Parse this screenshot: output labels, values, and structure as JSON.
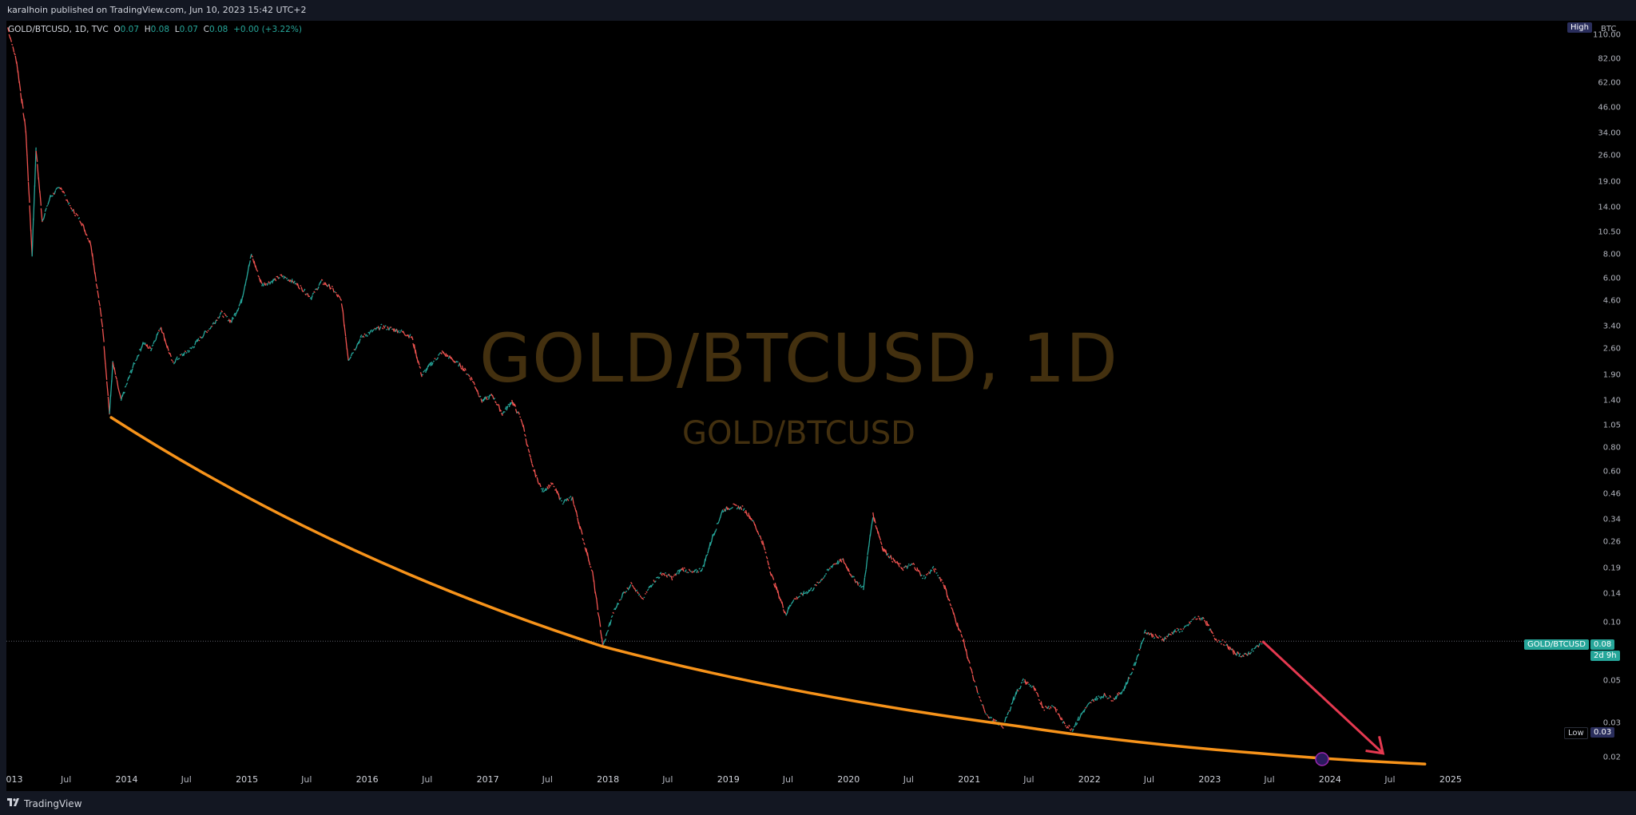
{
  "header": {
    "published": "karalhoin published on TradingView.com, Jun 10, 2023 15:42 UTC+2"
  },
  "legend": {
    "symbol": "GOLD/BTCUSD, 1D, TVC",
    "open_label": "O",
    "open": "0.07",
    "high_label": "H",
    "high": "0.08",
    "low_label": "L",
    "low": "0.07",
    "close_label": "C",
    "close": "0.08",
    "change": "+0.00 (+3.22%)"
  },
  "watermark": {
    "title": "GOLD/BTCUSD, 1D",
    "subtitle": "GOLD/BTCUSD"
  },
  "axis": {
    "currency": "BTC",
    "high_badge": "High",
    "low_label": "Low",
    "low_value": "0.03",
    "symbol_badge": "GOLD/BTCUSD",
    "last_price": "0.08",
    "countdown": "2d 9h"
  },
  "footer": {
    "brand": "TradingView"
  },
  "colors": {
    "up": "#26a69a",
    "down": "#ef5350",
    "trendline": "#f7931a",
    "arrow": "#e53950",
    "watermark": "#43300f"
  },
  "chart_data": {
    "type": "line",
    "title": "GOLD/BTCUSD, 1D",
    "scale": "log",
    "ylim": [
      0.018,
      130
    ],
    "xlim": [
      "2013-01-01",
      "2025-12-31"
    ],
    "y_ticks": [
      "110.00",
      "82.00",
      "62.00",
      "46.00",
      "34.00",
      "26.00",
      "19.00",
      "14.00",
      "10.50",
      "8.00",
      "6.00",
      "4.60",
      "3.40",
      "2.60",
      "1.90",
      "1.40",
      "1.05",
      "0.80",
      "0.60",
      "0.46",
      "0.34",
      "0.26",
      "0.19",
      "0.14",
      "0.10",
      "0.05",
      "0.03",
      "0.02"
    ],
    "x_ticks": [
      {
        "label": "013",
        "date": "2013-01-01",
        "year": true
      },
      {
        "label": "Jul",
        "date": "2013-07-01"
      },
      {
        "label": "2014",
        "date": "2014-01-01",
        "year": true
      },
      {
        "label": "Jul",
        "date": "2014-07-01"
      },
      {
        "label": "2015",
        "date": "2015-01-01",
        "year": true
      },
      {
        "label": "Jul",
        "date": "2015-07-01"
      },
      {
        "label": "2016",
        "date": "2016-01-01",
        "year": true
      },
      {
        "label": "Jul",
        "date": "2016-07-01"
      },
      {
        "label": "2017",
        "date": "2017-01-01",
        "year": true
      },
      {
        "label": "Jul",
        "date": "2017-07-01"
      },
      {
        "label": "2018",
        "date": "2018-01-01",
        "year": true
      },
      {
        "label": "Jul",
        "date": "2018-07-01"
      },
      {
        "label": "2019",
        "date": "2019-01-01",
        "year": true
      },
      {
        "label": "Jul",
        "date": "2019-07-01"
      },
      {
        "label": "2020",
        "date": "2020-01-01",
        "year": true
      },
      {
        "label": "Jul",
        "date": "2020-07-01"
      },
      {
        "label": "2021",
        "date": "2021-01-01",
        "year": true
      },
      {
        "label": "Jul",
        "date": "2021-07-01"
      },
      {
        "label": "2022",
        "date": "2022-01-01",
        "year": true
      },
      {
        "label": "Jul",
        "date": "2022-07-01"
      },
      {
        "label": "2023",
        "date": "2023-01-01",
        "year": true
      },
      {
        "label": "Jul",
        "date": "2023-07-01"
      },
      {
        "label": "2024",
        "date": "2024-01-01",
        "year": true
      },
      {
        "label": "Jul",
        "date": "2024-07-01"
      },
      {
        "label": "2025",
        "date": "2025-01-01",
        "year": true
      }
    ],
    "series": [
      {
        "points": [
          [
            "2013-01-05",
            120
          ],
          [
            "2013-02-01",
            80
          ],
          [
            "2013-03-01",
            35
          ],
          [
            "2013-03-20",
            8
          ],
          [
            "2013-04-01",
            28
          ],
          [
            "2013-04-20",
            12
          ],
          [
            "2013-05-15",
            16
          ],
          [
            "2013-06-15",
            18
          ],
          [
            "2013-07-15",
            14
          ],
          [
            "2013-08-15",
            12
          ],
          [
            "2013-09-15",
            9
          ],
          [
            "2013-10-20",
            3.4
          ],
          [
            "2013-11-10",
            1.2
          ],
          [
            "2013-11-20",
            2.2
          ],
          [
            "2013-12-15",
            1.4
          ],
          [
            "2014-01-15",
            2.0
          ],
          [
            "2014-02-20",
            2.8
          ],
          [
            "2014-03-15",
            2.6
          ],
          [
            "2014-04-15",
            3.4
          ],
          [
            "2014-05-20",
            2.2
          ],
          [
            "2014-06-15",
            2.4
          ],
          [
            "2014-07-15",
            2.6
          ],
          [
            "2014-08-15",
            3.0
          ],
          [
            "2014-09-15",
            3.4
          ],
          [
            "2014-10-15",
            4.0
          ],
          [
            "2014-11-15",
            3.6
          ],
          [
            "2014-12-15",
            4.6
          ],
          [
            "2015-01-15",
            8.0
          ],
          [
            "2015-02-15",
            5.6
          ],
          [
            "2015-03-15",
            5.8
          ],
          [
            "2015-04-15",
            6.2
          ],
          [
            "2015-05-15",
            5.9
          ],
          [
            "2015-06-15",
            5.4
          ],
          [
            "2015-07-15",
            4.8
          ],
          [
            "2015-08-15",
            5.8
          ],
          [
            "2015-09-15",
            5.4
          ],
          [
            "2015-10-15",
            4.6
          ],
          [
            "2015-11-05",
            2.3
          ],
          [
            "2015-12-15",
            3.0
          ],
          [
            "2016-01-15",
            3.2
          ],
          [
            "2016-02-15",
            3.4
          ],
          [
            "2016-03-15",
            3.3
          ],
          [
            "2016-04-15",
            3.2
          ],
          [
            "2016-05-15",
            3.0
          ],
          [
            "2016-06-15",
            1.9
          ],
          [
            "2016-07-15",
            2.2
          ],
          [
            "2016-08-15",
            2.5
          ],
          [
            "2016-09-15",
            2.3
          ],
          [
            "2016-10-15",
            2.1
          ],
          [
            "2016-11-15",
            1.8
          ],
          [
            "2016-12-15",
            1.4
          ],
          [
            "2017-01-15",
            1.5
          ],
          [
            "2017-02-15",
            1.2
          ],
          [
            "2017-03-15",
            1.4
          ],
          [
            "2017-04-15",
            1.1
          ],
          [
            "2017-05-15",
            0.65
          ],
          [
            "2017-06-15",
            0.48
          ],
          [
            "2017-07-15",
            0.52
          ],
          [
            "2017-08-15",
            0.42
          ],
          [
            "2017-09-15",
            0.44
          ],
          [
            "2017-10-15",
            0.28
          ],
          [
            "2017-11-15",
            0.18
          ],
          [
            "2017-12-17",
            0.075
          ],
          [
            "2018-01-15",
            0.11
          ],
          [
            "2018-02-15",
            0.14
          ],
          [
            "2018-03-15",
            0.16
          ],
          [
            "2018-04-15",
            0.13
          ],
          [
            "2018-05-15",
            0.16
          ],
          [
            "2018-06-15",
            0.18
          ],
          [
            "2018-07-15",
            0.17
          ],
          [
            "2018-08-15",
            0.19
          ],
          [
            "2018-09-15",
            0.18
          ],
          [
            "2018-10-15",
            0.19
          ],
          [
            "2018-11-15",
            0.28
          ],
          [
            "2018-12-15",
            0.38
          ],
          [
            "2019-01-15",
            0.4
          ],
          [
            "2019-02-15",
            0.39
          ],
          [
            "2019-03-15",
            0.34
          ],
          [
            "2019-04-15",
            0.26
          ],
          [
            "2019-05-15",
            0.17
          ],
          [
            "2019-06-25",
            0.11
          ],
          [
            "2019-07-15",
            0.13
          ],
          [
            "2019-08-15",
            0.14
          ],
          [
            "2019-09-15",
            0.15
          ],
          [
            "2019-10-15",
            0.17
          ],
          [
            "2019-11-15",
            0.2
          ],
          [
            "2019-12-15",
            0.21
          ],
          [
            "2020-01-15",
            0.17
          ],
          [
            "2020-02-15",
            0.15
          ],
          [
            "2020-03-15",
            0.36
          ],
          [
            "2020-04-15",
            0.24
          ],
          [
            "2020-05-15",
            0.21
          ],
          [
            "2020-06-15",
            0.19
          ],
          [
            "2020-07-15",
            0.2
          ],
          [
            "2020-08-15",
            0.17
          ],
          [
            "2020-09-15",
            0.19
          ],
          [
            "2020-10-15",
            0.16
          ],
          [
            "2020-11-15",
            0.11
          ],
          [
            "2020-12-15",
            0.08
          ],
          [
            "2021-01-15",
            0.05
          ],
          [
            "2021-02-15",
            0.035
          ],
          [
            "2021-03-15",
            0.031
          ],
          [
            "2021-04-15",
            0.029
          ],
          [
            "2021-05-20",
            0.042
          ],
          [
            "2021-06-15",
            0.05
          ],
          [
            "2021-07-15",
            0.046
          ],
          [
            "2021-08-15",
            0.036
          ],
          [
            "2021-09-15",
            0.037
          ],
          [
            "2021-10-15",
            0.03
          ],
          [
            "2021-11-10",
            0.028
          ],
          [
            "2021-12-15",
            0.035
          ],
          [
            "2022-01-15",
            0.04
          ],
          [
            "2022-02-15",
            0.042
          ],
          [
            "2022-03-15",
            0.04
          ],
          [
            "2022-04-15",
            0.045
          ],
          [
            "2022-05-15",
            0.058
          ],
          [
            "2022-06-20",
            0.09
          ],
          [
            "2022-07-15",
            0.085
          ],
          [
            "2022-08-15",
            0.082
          ],
          [
            "2022-09-15",
            0.09
          ],
          [
            "2022-10-15",
            0.092
          ],
          [
            "2022-11-15",
            0.105
          ],
          [
            "2022-12-15",
            0.105
          ],
          [
            "2023-01-15",
            0.083
          ],
          [
            "2023-02-15",
            0.078
          ],
          [
            "2023-03-15",
            0.07
          ],
          [
            "2023-04-15",
            0.067
          ],
          [
            "2023-05-15",
            0.072
          ],
          [
            "2023-06-10",
            0.08
          ]
        ]
      }
    ],
    "trendline": [
      [
        "2013-11-15",
        1.15
      ],
      [
        "2017-12-17",
        0.075
      ],
      [
        "2021-06-01",
        0.029
      ],
      [
        "2023-06-01",
        0.021
      ],
      [
        "2024-10-15",
        0.0185
      ]
    ],
    "arrow": {
      "from": [
        "2023-06-10",
        0.08
      ],
      "to": [
        "2024-06-10",
        0.021
      ]
    },
    "last_value": 0.08
  }
}
